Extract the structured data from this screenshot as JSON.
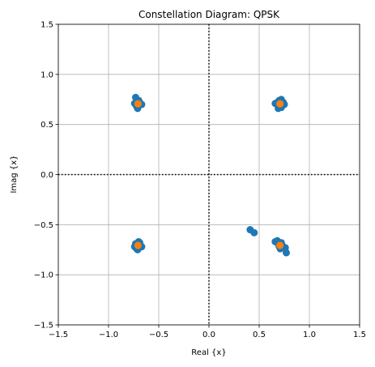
{
  "chart_data": {
    "type": "scatter",
    "title": "Constellation Diagram: QPSK",
    "xlabel": "Real {x}",
    "ylabel": "Imag {x}",
    "xlim": [
      -1.5,
      1.5
    ],
    "ylim": [
      -1.5,
      1.5
    ],
    "xticks": [
      -1.5,
      -1.0,
      -0.5,
      0.0,
      0.5,
      1.0,
      1.5
    ],
    "yticks": [
      -1.5,
      -1.0,
      -0.5,
      0.0,
      0.5,
      1.0,
      1.5
    ],
    "xtick_labels": [
      "−1.5",
      "−1.0",
      "−0.5",
      "0.0",
      "0.5",
      "1.0",
      "1.5"
    ],
    "ytick_labels": [
      "−1.5",
      "−1.0",
      "−0.5",
      "0.0",
      "0.5",
      "1.0",
      "1.5"
    ],
    "grid": true,
    "reference_lines": {
      "x": 0.0,
      "y": 0.0,
      "style": "dotted",
      "color": "#000000"
    },
    "series": [
      {
        "color": "#1f77b4",
        "x": [
          0.68,
          0.7,
          0.72,
          0.74,
          0.71,
          0.69,
          0.73,
          0.66,
          0.7,
          0.75,
          0.72,
          0.68,
          0.71,
          -0.73,
          -0.7,
          -0.68,
          -0.72,
          -0.74,
          -0.71,
          -0.69,
          -0.7,
          -0.72,
          -0.67,
          -0.71,
          -0.7,
          -0.72,
          -0.74,
          -0.69,
          -0.71,
          -0.68,
          -0.73,
          -0.7,
          -0.67,
          -0.72,
          0.68,
          0.7,
          0.72,
          0.74,
          0.71,
          0.69,
          0.73,
          0.66,
          0.76,
          0.77,
          0.7,
          0.72,
          0.41,
          0.45
        ],
        "y": [
          0.7,
          0.73,
          0.75,
          0.72,
          0.68,
          0.66,
          0.69,
          0.71,
          0.74,
          0.7,
          0.67,
          0.72,
          0.7,
          0.77,
          0.73,
          0.7,
          0.68,
          0.71,
          0.66,
          0.72,
          0.74,
          0.69,
          0.7,
          0.71,
          -0.73,
          -0.7,
          -0.72,
          -0.68,
          -0.75,
          -0.71,
          -0.69,
          -0.67,
          -0.72,
          -0.74,
          -0.66,
          -0.7,
          -0.68,
          -0.72,
          -0.74,
          -0.69,
          -0.71,
          -0.67,
          -0.73,
          -0.78,
          -0.72,
          -0.7,
          -0.55,
          -0.58
        ]
      },
      {
        "color": "#ff7f0e",
        "x": [
          0.707,
          -0.707,
          -0.707,
          0.707
        ],
        "y": [
          0.707,
          0.707,
          -0.707,
          -0.707
        ]
      }
    ]
  }
}
